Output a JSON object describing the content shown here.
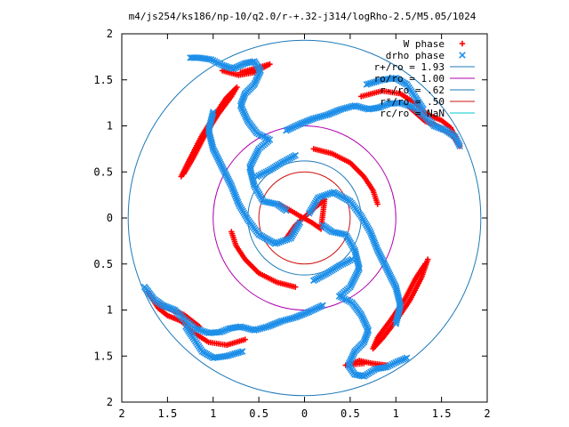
{
  "chart_data": {
    "type": "scatter",
    "title": "m4/js254/ks186/np-10/q2.0/r-+.32-j314/logRho-2.5/M5.05/1024",
    "xlim": [
      -2,
      2
    ],
    "ylim": [
      -2,
      2
    ],
    "x_tick_labels": [
      "2",
      "1.5",
      "1",
      "0.5",
      "0",
      "0.5",
      "1",
      "1.5",
      "2"
    ],
    "x_tick_values": [
      -2,
      -1.5,
      -1,
      -0.5,
      0,
      0.5,
      1,
      1.5,
      2
    ],
    "y_tick_labels": [
      "2",
      "1.5",
      "1",
      "0.5",
      "0",
      "0.5",
      "1",
      "1.5",
      "2"
    ],
    "y_tick_values": [
      2,
      1.5,
      1,
      0.5,
      0,
      -0.5,
      -1,
      -1.5,
      -2
    ],
    "grid": false,
    "legend_position": "top-right",
    "series": [
      {
        "name": "W phase",
        "marker": "plus",
        "color": "#ff0000",
        "arms": [
          [
            [
              -1.35,
              0.45
            ],
            [
              -1.25,
              0.65
            ],
            [
              -1.12,
              0.9
            ],
            [
              -0.98,
              1.12
            ],
            [
              -0.86,
              1.3
            ],
            [
              -0.74,
              1.42
            ],
            [
              -0.8,
              1.32
            ],
            [
              -0.95,
              1.12
            ],
            [
              -1.1,
              0.88
            ],
            [
              -1.22,
              0.65
            ],
            [
              -1.32,
              0.48
            ]
          ],
          [
            [
              -0.9,
              1.6
            ],
            [
              -0.72,
              1.55
            ],
            [
              -0.55,
              1.58
            ],
            [
              -0.38,
              1.67
            ],
            [
              -0.52,
              1.63
            ],
            [
              -0.7,
              1.58
            ]
          ],
          [
            [
              0.62,
              1.32
            ],
            [
              0.85,
              1.38
            ],
            [
              1.05,
              1.35
            ],
            [
              1.22,
              1.24
            ],
            [
              1.35,
              1.12
            ],
            [
              1.5,
              1.06
            ],
            [
              1.6,
              0.98
            ],
            [
              1.7,
              0.78
            ],
            [
              1.62,
              0.9
            ],
            [
              1.45,
              1.0
            ],
            [
              1.32,
              1.05
            ],
            [
              1.15,
              1.2
            ]
          ],
          [
            [
              1.35,
              -0.45
            ],
            [
              1.28,
              -0.65
            ],
            [
              1.15,
              -0.9
            ],
            [
              1.0,
              -1.12
            ],
            [
              0.86,
              -1.3
            ],
            [
              0.75,
              -1.42
            ],
            [
              0.8,
              -1.3
            ],
            [
              0.95,
              -1.1
            ],
            [
              1.1,
              -0.88
            ],
            [
              1.22,
              -0.65
            ],
            [
              1.32,
              -0.5
            ]
          ],
          [
            [
              0.9,
              -1.6
            ],
            [
              0.74,
              -1.58
            ],
            [
              0.6,
              -1.55
            ],
            [
              0.45,
              -1.6
            ],
            [
              0.65,
              -1.58
            ]
          ],
          [
            [
              -0.65,
              -1.32
            ],
            [
              -0.85,
              -1.38
            ],
            [
              -1.05,
              -1.35
            ],
            [
              -1.22,
              -1.24
            ],
            [
              -1.35,
              -1.12
            ],
            [
              -1.5,
              -1.06
            ],
            [
              -1.6,
              -0.98
            ],
            [
              -1.72,
              -0.8
            ],
            [
              -1.62,
              -0.92
            ],
            [
              -1.45,
              -1.0
            ],
            [
              -1.32,
              -1.05
            ],
            [
              -1.15,
              -1.18
            ]
          ],
          [
            [
              -0.28,
              0.15
            ],
            [
              -0.15,
              0.08
            ],
            [
              -0.05,
              0.02
            ],
            [
              0.08,
              -0.05
            ],
            [
              0.18,
              -0.12
            ],
            [
              0.22,
              0.2
            ],
            [
              0.1,
              0.1
            ],
            [
              -0.1,
              -0.08
            ],
            [
              -0.2,
              -0.22
            ]
          ],
          [
            [
              0.1,
              0.75
            ],
            [
              0.3,
              0.7
            ],
            [
              0.5,
              0.6
            ],
            [
              0.65,
              0.45
            ],
            [
              0.75,
              0.3
            ],
            [
              0.8,
              0.15
            ]
          ],
          [
            [
              -0.1,
              -0.75
            ],
            [
              -0.3,
              -0.7
            ],
            [
              -0.5,
              -0.6
            ],
            [
              -0.65,
              -0.45
            ],
            [
              -0.75,
              -0.3
            ],
            [
              -0.8,
              -0.15
            ]
          ]
        ]
      },
      {
        "name": "drho phase",
        "marker": "cross",
        "color": "#1e8fe8",
        "arms": [
          [
            [
              -0.2,
              0.08
            ],
            [
              -0.3,
              0.15
            ],
            [
              -0.45,
              0.18
            ],
            [
              -0.55,
              0.35
            ],
            [
              -0.6,
              0.55
            ],
            [
              -0.5,
              0.75
            ],
            [
              -0.38,
              0.85
            ],
            [
              -0.52,
              0.92
            ],
            [
              -0.62,
              1.05
            ],
            [
              -0.7,
              1.22
            ],
            [
              -0.65,
              1.35
            ],
            [
              -0.55,
              1.45
            ],
            [
              -0.48,
              1.6
            ],
            [
              -0.55,
              1.7
            ],
            [
              -0.65,
              1.68
            ],
            [
              -0.78,
              1.62
            ],
            [
              -0.9,
              1.66
            ],
            [
              -1.02,
              1.72
            ],
            [
              -1.15,
              1.74
            ],
            [
              -1.25,
              1.74
            ]
          ],
          [
            [
              -0.05,
              -0.05
            ],
            [
              -0.15,
              -0.22
            ],
            [
              -0.32,
              -0.28
            ],
            [
              -0.5,
              -0.18
            ],
            [
              -0.62,
              -0.02
            ],
            [
              -0.72,
              0.15
            ],
            [
              -0.8,
              0.35
            ],
            [
              -0.9,
              0.55
            ],
            [
              -1.0,
              0.75
            ],
            [
              -1.05,
              0.95
            ],
            [
              -1.0,
              1.15
            ]
          ],
          [
            [
              0.2,
              -0.08
            ],
            [
              0.3,
              -0.15
            ],
            [
              0.45,
              -0.18
            ],
            [
              0.55,
              -0.35
            ],
            [
              0.6,
              -0.55
            ],
            [
              0.5,
              -0.75
            ],
            [
              0.38,
              -0.85
            ],
            [
              0.52,
              -0.92
            ],
            [
              0.62,
              -1.05
            ],
            [
              0.7,
              -1.22
            ],
            [
              0.65,
              -1.35
            ],
            [
              0.55,
              -1.45
            ],
            [
              0.48,
              -1.6
            ],
            [
              0.55,
              -1.7
            ],
            [
              0.65,
              -1.72
            ],
            [
              0.78,
              -1.64
            ],
            [
              0.9,
              -1.62
            ],
            [
              1.02,
              -1.56
            ],
            [
              1.12,
              -1.52
            ]
          ],
          [
            [
              0.05,
              0.05
            ],
            [
              0.15,
              0.22
            ],
            [
              0.32,
              0.28
            ],
            [
              0.5,
              0.18
            ],
            [
              0.62,
              0.02
            ],
            [
              0.72,
              -0.15
            ],
            [
              0.8,
              -0.35
            ],
            [
              0.9,
              -0.55
            ],
            [
              1.0,
              -0.75
            ],
            [
              1.05,
              -0.95
            ],
            [
              1.0,
              -1.15
            ]
          ],
          [
            [
              -0.2,
              0.95
            ],
            [
              -0.05,
              1.02
            ],
            [
              0.1,
              1.08
            ],
            [
              0.25,
              1.12
            ],
            [
              0.4,
              1.18
            ],
            [
              0.55,
              1.22
            ],
            [
              0.7,
              1.18
            ],
            [
              0.82,
              1.2
            ],
            [
              0.92,
              1.24
            ],
            [
              1.05,
              1.25
            ],
            [
              1.2,
              1.2
            ],
            [
              1.32,
              1.1
            ],
            [
              1.42,
              1.0
            ],
            [
              1.55,
              0.95
            ],
            [
              1.65,
              0.88
            ],
            [
              1.7,
              0.78
            ]
          ],
          [
            [
              0.2,
              -0.95
            ],
            [
              0.05,
              -1.02
            ],
            [
              -0.1,
              -1.08
            ],
            [
              -0.25,
              -1.12
            ],
            [
              -0.4,
              -1.18
            ],
            [
              -0.55,
              -1.22
            ],
            [
              -0.7,
              -1.18
            ],
            [
              -0.82,
              -1.2
            ],
            [
              -0.92,
              -1.24
            ],
            [
              -1.05,
              -1.25
            ],
            [
              -1.2,
              -1.2
            ],
            [
              -1.32,
              -1.1
            ],
            [
              -1.42,
              -1.0
            ],
            [
              -1.55,
              -0.95
            ],
            [
              -1.65,
              -0.88
            ],
            [
              -1.75,
              -0.75
            ]
          ],
          [
            [
              0.68,
              1.45
            ],
            [
              0.85,
              1.5
            ],
            [
              1.0,
              1.52
            ],
            [
              1.12,
              1.45
            ],
            [
              1.22,
              1.3
            ],
            [
              1.3,
              1.18
            ]
          ],
          [
            [
              -0.68,
              -1.45
            ],
            [
              -0.85,
              -1.5
            ],
            [
              -1.0,
              -1.52
            ],
            [
              -1.12,
              -1.45
            ],
            [
              -1.22,
              -1.3
            ],
            [
              -1.3,
              -1.18
            ]
          ],
          [
            [
              -0.52,
              0.45
            ],
            [
              -0.38,
              0.52
            ],
            [
              -0.25,
              0.6
            ],
            [
              -0.1,
              0.68
            ]
          ],
          [
            [
              0.52,
              -0.45
            ],
            [
              0.38,
              -0.52
            ],
            [
              0.25,
              -0.6
            ],
            [
              0.1,
              -0.68
            ]
          ]
        ]
      },
      {
        "name": "r+/ro = 1.93",
        "type": "circle",
        "radius": 1.93,
        "color": "#1e7ab8"
      },
      {
        "name": "ro/ro = 1.00",
        "type": "circle",
        "radius": 1.0,
        "color": "#b000b0"
      },
      {
        "name": "r-/ro = .62",
        "type": "circle",
        "radius": 0.62,
        "color": "#1e7ab8"
      },
      {
        "name": "r*/ro = .50",
        "type": "circle",
        "radius": 0.5,
        "color": "#d01010"
      },
      {
        "name": "rc/ro = NaN",
        "type": "circle",
        "radius": null,
        "color": "#00c8c8"
      }
    ]
  }
}
